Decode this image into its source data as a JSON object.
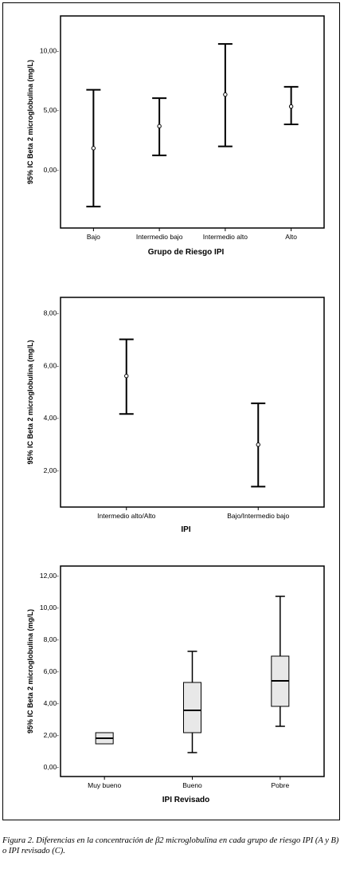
{
  "chart_data": [
    {
      "type": "errorbar",
      "ylabel": "95% IC Beta 2 microglobulina (mg/L)",
      "xlabel": "Grupo de Riesgo IPI",
      "categories": [
        "Bajo",
        "Intermedio bajo",
        "Intermedio alto",
        "Alto"
      ],
      "ticks": [
        0,
        5,
        10
      ],
      "tick_labels": [
        "0,00-",
        "5,00-",
        "10,00-"
      ],
      "ylim": [
        -4.9,
        12.9
      ],
      "series": [
        {
          "mean": 1.8,
          "lower": -3.1,
          "upper": 6.7
        },
        {
          "mean": 3.65,
          "lower": 1.2,
          "upper": 6.0
        },
        {
          "mean": 6.3,
          "lower": 1.95,
          "upper": 10.55
        },
        {
          "mean": 5.3,
          "lower": 3.8,
          "upper": 6.95
        }
      ]
    },
    {
      "type": "errorbar",
      "ylabel": "95% IC Beta 2 microglobulina (mg/L)",
      "xlabel": "IPI",
      "categories": [
        "Intermedio alto/Alto",
        "Bajo/Intermedio bajo"
      ],
      "ticks": [
        2,
        4,
        6,
        8
      ],
      "tick_labels": [
        "2,00-",
        "4,00-",
        "6,00-",
        "8,00-"
      ],
      "ylim": [
        0.6,
        8.6
      ],
      "series": [
        {
          "mean": 5.6,
          "lower": 4.15,
          "upper": 7.0
        },
        {
          "mean": 2.98,
          "lower": 1.38,
          "upper": 4.56
        }
      ]
    },
    {
      "type": "boxplot",
      "ylabel": "95% IC Beta 2 microglobulina (mg/L)",
      "xlabel": "IPI Revisado",
      "categories": [
        "Muy bueno",
        "Bueno",
        "Pobre"
      ],
      "ticks": [
        0,
        2,
        4,
        6,
        8,
        10,
        12
      ],
      "tick_labels": [
        "0,00-",
        "2,00-",
        "4,00-",
        "6,00-",
        "8,00-",
        "10,00-",
        "12,00-"
      ],
      "ylim": [
        -0.6,
        12.6
      ],
      "series": [
        {
          "min": 1.45,
          "q1": 1.45,
          "median": 1.8,
          "q3": 2.15,
          "max": 2.15
        },
        {
          "min": 0.9,
          "q1": 2.15,
          "median": 3.55,
          "q3": 5.3,
          "max": 7.25
        },
        {
          "min": 2.55,
          "q1": 3.8,
          "median": 5.4,
          "q3": 6.95,
          "max": 10.7
        }
      ]
    }
  ],
  "caption": "Figura 2. Diferencias en la concentración de β2 microglobulina en cada grupo de riesgo IPI (A y B) o IPI revisado (C)."
}
